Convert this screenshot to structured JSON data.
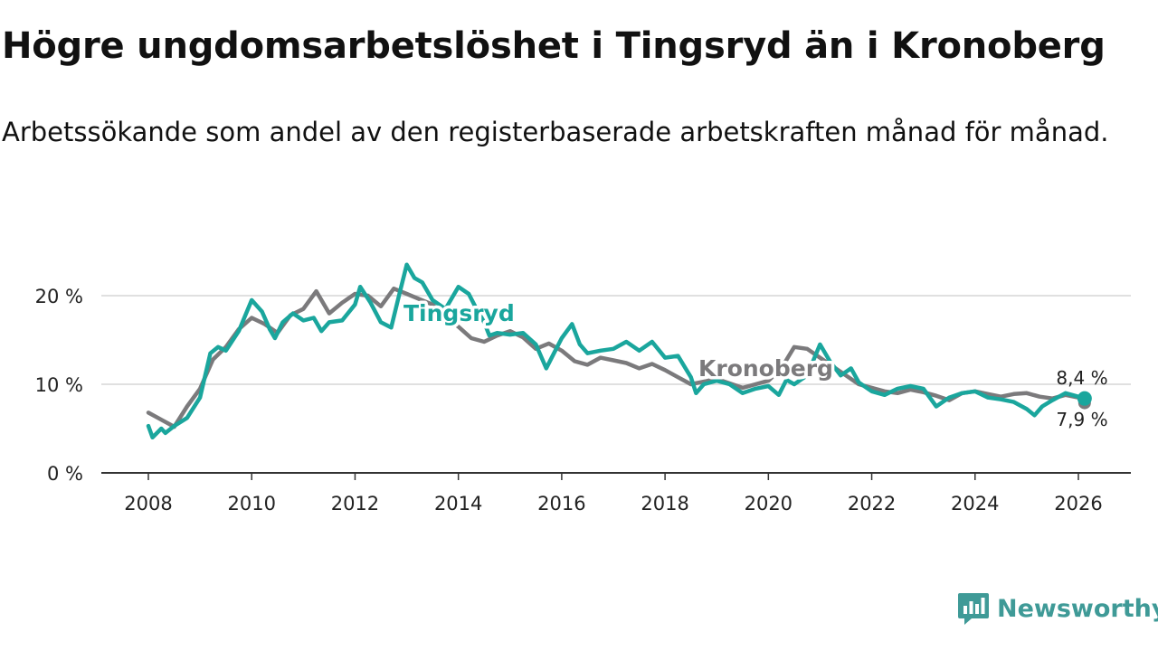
{
  "chart_data": {
    "type": "line",
    "title": "Högre ungdomsarbetslöshet i Tingsryd än i Kronoberg",
    "subtitle": "Arbetssökande som andel av den registerbaserade arbetskraften månad för månad.",
    "xlabel": "",
    "ylabel": "",
    "xlim": [
      2007.1,
      2027.0
    ],
    "ylim": [
      0,
      22
    ],
    "x_ticks": [
      "2008",
      "2010",
      "2012",
      "2014",
      "2016",
      "2018",
      "2020",
      "2022",
      "2024",
      "2026"
    ],
    "y_ticks": [
      "0 %",
      "10 %",
      "20 %"
    ],
    "series": [
      {
        "name": "Kronoberg",
        "color": "#7b7a7c",
        "label": "Kronoberg",
        "last_value_label": "7,9 %",
        "points": [
          [
            2008.0,
            6.8
          ],
          [
            2008.25,
            6.0
          ],
          [
            2008.5,
            5.2
          ],
          [
            2008.75,
            7.5
          ],
          [
            2009.0,
            9.5
          ],
          [
            2009.25,
            12.8
          ],
          [
            2009.5,
            14.2
          ],
          [
            2009.75,
            16.2
          ],
          [
            2010.0,
            17.5
          ],
          [
            2010.25,
            16.8
          ],
          [
            2010.5,
            15.8
          ],
          [
            2010.75,
            17.8
          ],
          [
            2011.0,
            18.5
          ],
          [
            2011.25,
            20.5
          ],
          [
            2011.5,
            18.0
          ],
          [
            2011.75,
            19.2
          ],
          [
            2012.0,
            20.2
          ],
          [
            2012.25,
            20.0
          ],
          [
            2012.5,
            18.8
          ],
          [
            2012.75,
            20.8
          ],
          [
            2013.0,
            20.2
          ],
          [
            2013.25,
            19.6
          ],
          [
            2013.5,
            19.0
          ],
          [
            2013.75,
            17.5
          ],
          [
            2014.0,
            16.5
          ],
          [
            2014.25,
            15.2
          ],
          [
            2014.5,
            14.8
          ],
          [
            2014.75,
            15.5
          ],
          [
            2015.0,
            16.0
          ],
          [
            2015.25,
            15.3
          ],
          [
            2015.5,
            14.0
          ],
          [
            2015.75,
            14.6
          ],
          [
            2016.0,
            13.8
          ],
          [
            2016.25,
            12.6
          ],
          [
            2016.5,
            12.2
          ],
          [
            2016.75,
            13.0
          ],
          [
            2017.0,
            12.7
          ],
          [
            2017.25,
            12.4
          ],
          [
            2017.5,
            11.8
          ],
          [
            2017.75,
            12.3
          ],
          [
            2018.0,
            11.6
          ],
          [
            2018.25,
            10.8
          ],
          [
            2018.5,
            10.0
          ],
          [
            2018.75,
            10.3
          ],
          [
            2019.0,
            10.6
          ],
          [
            2019.25,
            10.1
          ],
          [
            2019.5,
            9.6
          ],
          [
            2019.75,
            10.0
          ],
          [
            2020.0,
            10.4
          ],
          [
            2020.25,
            11.8
          ],
          [
            2020.5,
            14.2
          ],
          [
            2020.75,
            14.0
          ],
          [
            2021.0,
            13.0
          ],
          [
            2021.25,
            12.0
          ],
          [
            2021.5,
            11.0
          ],
          [
            2021.75,
            10.0
          ],
          [
            2022.0,
            9.6
          ],
          [
            2022.25,
            9.2
          ],
          [
            2022.5,
            9.0
          ],
          [
            2022.75,
            9.4
          ],
          [
            2023.0,
            9.1
          ],
          [
            2023.25,
            8.7
          ],
          [
            2023.5,
            8.2
          ],
          [
            2023.75,
            9.0
          ],
          [
            2024.0,
            9.2
          ],
          [
            2024.25,
            8.9
          ],
          [
            2024.5,
            8.6
          ],
          [
            2024.75,
            8.9
          ],
          [
            2025.0,
            9.0
          ],
          [
            2025.25,
            8.6
          ],
          [
            2025.5,
            8.4
          ],
          [
            2025.75,
            8.8
          ],
          [
            2026.0,
            8.5
          ],
          [
            2026.12,
            7.9
          ]
        ]
      },
      {
        "name": "Tingsryd",
        "color": "#1aa69d",
        "label": "Tingsryd",
        "last_value_label": "8,4 %",
        "points": [
          [
            2008.0,
            5.3
          ],
          [
            2008.08,
            4.0
          ],
          [
            2008.25,
            5.0
          ],
          [
            2008.33,
            4.5
          ],
          [
            2008.5,
            5.3
          ],
          [
            2008.75,
            6.2
          ],
          [
            2009.0,
            8.5
          ],
          [
            2009.2,
            13.5
          ],
          [
            2009.35,
            14.2
          ],
          [
            2009.5,
            13.8
          ],
          [
            2009.75,
            16.0
          ],
          [
            2010.0,
            19.5
          ],
          [
            2010.2,
            18.2
          ],
          [
            2010.35,
            16.2
          ],
          [
            2010.45,
            15.2
          ],
          [
            2010.6,
            17.0
          ],
          [
            2010.8,
            18.0
          ],
          [
            2011.0,
            17.2
          ],
          [
            2011.2,
            17.5
          ],
          [
            2011.35,
            16.0
          ],
          [
            2011.5,
            17.0
          ],
          [
            2011.75,
            17.2
          ],
          [
            2012.0,
            19.0
          ],
          [
            2012.1,
            21.0
          ],
          [
            2012.3,
            19.2
          ],
          [
            2012.5,
            17.0
          ],
          [
            2012.7,
            16.4
          ],
          [
            2012.85,
            20.0
          ],
          [
            2013.0,
            23.5
          ],
          [
            2013.15,
            22.0
          ],
          [
            2013.3,
            21.5
          ],
          [
            2013.5,
            19.5
          ],
          [
            2013.75,
            18.5
          ],
          [
            2014.0,
            21.0
          ],
          [
            2014.2,
            20.2
          ],
          [
            2014.35,
            18.5
          ],
          [
            2014.5,
            17.0
          ],
          [
            2014.6,
            15.5
          ],
          [
            2014.75,
            15.8
          ],
          [
            2015.0,
            15.6
          ],
          [
            2015.25,
            15.8
          ],
          [
            2015.5,
            14.5
          ],
          [
            2015.7,
            11.8
          ],
          [
            2015.85,
            13.5
          ],
          [
            2016.0,
            15.2
          ],
          [
            2016.2,
            16.8
          ],
          [
            2016.35,
            14.5
          ],
          [
            2016.5,
            13.5
          ],
          [
            2016.75,
            13.8
          ],
          [
            2017.0,
            14.0
          ],
          [
            2017.25,
            14.8
          ],
          [
            2017.5,
            13.8
          ],
          [
            2017.75,
            14.8
          ],
          [
            2018.0,
            13.0
          ],
          [
            2018.25,
            13.2
          ],
          [
            2018.5,
            10.8
          ],
          [
            2018.6,
            9.0
          ],
          [
            2018.75,
            10.0
          ],
          [
            2019.0,
            10.4
          ],
          [
            2019.25,
            10.0
          ],
          [
            2019.5,
            9.0
          ],
          [
            2019.75,
            9.5
          ],
          [
            2020.0,
            9.8
          ],
          [
            2020.2,
            8.8
          ],
          [
            2020.35,
            10.5
          ],
          [
            2020.5,
            10.0
          ],
          [
            2020.75,
            11.0
          ],
          [
            2021.0,
            14.5
          ],
          [
            2021.2,
            12.5
          ],
          [
            2021.4,
            11.0
          ],
          [
            2021.6,
            11.8
          ],
          [
            2021.75,
            10.2
          ],
          [
            2022.0,
            9.2
          ],
          [
            2022.25,
            8.8
          ],
          [
            2022.5,
            9.5
          ],
          [
            2022.75,
            9.8
          ],
          [
            2023.0,
            9.5
          ],
          [
            2023.25,
            7.5
          ],
          [
            2023.5,
            8.5
          ],
          [
            2023.75,
            9.0
          ],
          [
            2024.0,
            9.2
          ],
          [
            2024.25,
            8.5
          ],
          [
            2024.5,
            8.3
          ],
          [
            2024.75,
            8.0
          ],
          [
            2025.0,
            7.2
          ],
          [
            2025.15,
            6.5
          ],
          [
            2025.3,
            7.5
          ],
          [
            2025.5,
            8.2
          ],
          [
            2025.75,
            9.0
          ],
          [
            2026.0,
            8.6
          ],
          [
            2026.12,
            8.4
          ]
        ]
      }
    ]
  },
  "branding": {
    "name": "Newsworthy",
    "color": "#3f9a97"
  }
}
